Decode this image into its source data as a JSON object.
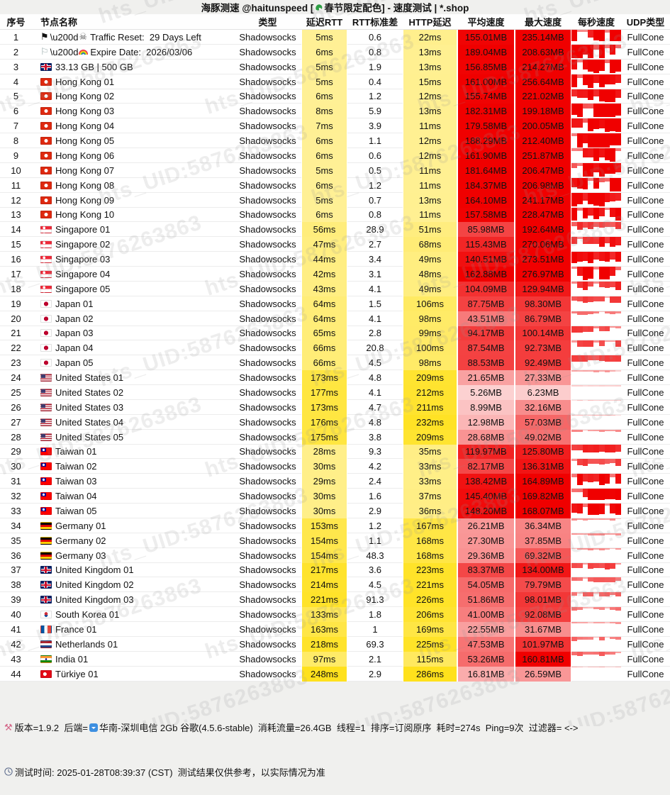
{
  "title": {
    "pre": "海豚测速 @haitunspeed [",
    "post": "春节限定配色] - 速度测试 | *.shop"
  },
  "watermark": {
    "text": "hts_UID:5876263863"
  },
  "table": {
    "headers": [
      "序号",
      "节点名称",
      "类型",
      "延迟RTT",
      "RTT标准差",
      "HTTP延迟",
      "平均速度",
      "最大速度",
      "每秒速度",
      "UDP类型"
    ],
    "rows": [
      {
        "num": "1",
        "flag": "pirate",
        "name": "Traffic Reset:  29 Days Left",
        "type": "Shadowsocks",
        "rtt": "5ms",
        "std": "0.6",
        "http": "22ms",
        "avg": "155.01MB",
        "max": "235.14MB",
        "udp": "FullCone"
      },
      {
        "num": "2",
        "flag": "rainbow",
        "name": "Expire Date:  2026/03/06",
        "type": "Shadowsocks",
        "rtt": "6ms",
        "std": "0.8",
        "http": "13ms",
        "avg": "189.04MB",
        "max": "208.63MB",
        "udp": "FullCone"
      },
      {
        "num": "3",
        "flag": "gb",
        "name": "33.13 GB | 500 GB",
        "type": "Shadowsocks",
        "rtt": "5ms",
        "std": "1.9",
        "http": "13ms",
        "avg": "156.85MB",
        "max": "214.27MB",
        "udp": "FullCone"
      },
      {
        "num": "4",
        "flag": "hk",
        "name": "Hong Kong 01",
        "type": "Shadowsocks",
        "rtt": "5ms",
        "std": "0.4",
        "http": "15ms",
        "avg": "161.00MB",
        "max": "256.64MB",
        "udp": "FullCone"
      },
      {
        "num": "5",
        "flag": "hk",
        "name": "Hong Kong 02",
        "type": "Shadowsocks",
        "rtt": "6ms",
        "std": "1.2",
        "http": "12ms",
        "avg": "155.74MB",
        "max": "221.02MB",
        "udp": "FullCone"
      },
      {
        "num": "6",
        "flag": "hk",
        "name": "Hong Kong 03",
        "type": "Shadowsocks",
        "rtt": "8ms",
        "std": "5.9",
        "http": "13ms",
        "avg": "182.31MB",
        "max": "199.18MB",
        "udp": "FullCone"
      },
      {
        "num": "7",
        "flag": "hk",
        "name": "Hong Kong 04",
        "type": "Shadowsocks",
        "rtt": "7ms",
        "std": "3.9",
        "http": "11ms",
        "avg": "179.58MB",
        "max": "200.05MB",
        "udp": "FullCone"
      },
      {
        "num": "8",
        "flag": "hk",
        "name": "Hong Kong 05",
        "type": "Shadowsocks",
        "rtt": "6ms",
        "std": "1.1",
        "http": "12ms",
        "avg": "188.29MB",
        "max": "212.40MB",
        "udp": "FullCone"
      },
      {
        "num": "9",
        "flag": "hk",
        "name": "Hong Kong 06",
        "type": "Shadowsocks",
        "rtt": "6ms",
        "std": "0.6",
        "http": "12ms",
        "avg": "161.90MB",
        "max": "251.87MB",
        "udp": "FullCone"
      },
      {
        "num": "10",
        "flag": "hk",
        "name": "Hong Kong 07",
        "type": "Shadowsocks",
        "rtt": "5ms",
        "std": "0.5",
        "http": "11ms",
        "avg": "181.64MB",
        "max": "206.47MB",
        "udp": "FullCone"
      },
      {
        "num": "11",
        "flag": "hk",
        "name": "Hong Kong 08",
        "type": "Shadowsocks",
        "rtt": "6ms",
        "std": "1.2",
        "http": "11ms",
        "avg": "184.37MB",
        "max": "206.98MB",
        "udp": "FullCone"
      },
      {
        "num": "12",
        "flag": "hk",
        "name": "Hong Kong 09",
        "type": "Shadowsocks",
        "rtt": "5ms",
        "std": "0.7",
        "http": "13ms",
        "avg": "164.10MB",
        "max": "241.17MB",
        "udp": "FullCone"
      },
      {
        "num": "13",
        "flag": "hk",
        "name": "Hong Kong 10",
        "type": "Shadowsocks",
        "rtt": "6ms",
        "std": "0.8",
        "http": "11ms",
        "avg": "157.58MB",
        "max": "228.47MB",
        "udp": "FullCone"
      },
      {
        "num": "14",
        "flag": "sg",
        "name": "Singapore 01",
        "type": "Shadowsocks",
        "rtt": "56ms",
        "std": "28.9",
        "http": "51ms",
        "avg": "85.98MB",
        "max": "192.64MB",
        "udp": "FullCone"
      },
      {
        "num": "15",
        "flag": "sg",
        "name": "Singapore 02",
        "type": "Shadowsocks",
        "rtt": "47ms",
        "std": "2.7",
        "http": "68ms",
        "avg": "115.43MB",
        "max": "270.06MB",
        "udp": "FullCone"
      },
      {
        "num": "16",
        "flag": "sg",
        "name": "Singapore 03",
        "type": "Shadowsocks",
        "rtt": "44ms",
        "std": "3.4",
        "http": "49ms",
        "avg": "140.51MB",
        "max": "273.51MB",
        "udp": "FullCone"
      },
      {
        "num": "17",
        "flag": "sg",
        "name": "Singapore 04",
        "type": "Shadowsocks",
        "rtt": "42ms",
        "std": "3.1",
        "http": "48ms",
        "avg": "162.88MB",
        "max": "276.97MB",
        "udp": "FullCone"
      },
      {
        "num": "18",
        "flag": "sg",
        "name": "Singapore 05",
        "type": "Shadowsocks",
        "rtt": "43ms",
        "std": "4.1",
        "http": "49ms",
        "avg": "104.09MB",
        "max": "129.94MB",
        "udp": "FullCone"
      },
      {
        "num": "19",
        "flag": "jp",
        "name": "Japan 01",
        "type": "Shadowsocks",
        "rtt": "64ms",
        "std": "1.5",
        "http": "106ms",
        "avg": "87.75MB",
        "max": "98.30MB",
        "udp": "FullCone"
      },
      {
        "num": "20",
        "flag": "jp",
        "name": "Japan 02",
        "type": "Shadowsocks",
        "rtt": "64ms",
        "std": "4.1",
        "http": "98ms",
        "avg": "43.51MB",
        "max": "86.79MB",
        "udp": "FullCone"
      },
      {
        "num": "21",
        "flag": "jp",
        "name": "Japan 03",
        "type": "Shadowsocks",
        "rtt": "65ms",
        "std": "2.8",
        "http": "99ms",
        "avg": "94.17MB",
        "max": "100.14MB",
        "udp": "FullCone"
      },
      {
        "num": "22",
        "flag": "jp",
        "name": "Japan 04",
        "type": "Shadowsocks",
        "rtt": "66ms",
        "std": "20.8",
        "http": "100ms",
        "avg": "87.54MB",
        "max": "92.73MB",
        "udp": "FullCone"
      },
      {
        "num": "23",
        "flag": "jp",
        "name": "Japan 05",
        "type": "Shadowsocks",
        "rtt": "66ms",
        "std": "4.5",
        "http": "98ms",
        "avg": "88.53MB",
        "max": "92.49MB",
        "udp": "FullCone"
      },
      {
        "num": "24",
        "flag": "us",
        "name": "United States 01",
        "type": "Shadowsocks",
        "rtt": "173ms",
        "std": "4.8",
        "http": "209ms",
        "avg": "21.65MB",
        "max": "27.33MB",
        "udp": "FullCone"
      },
      {
        "num": "25",
        "flag": "us",
        "name": "United States 02",
        "type": "Shadowsocks",
        "rtt": "177ms",
        "std": "4.1",
        "http": "212ms",
        "avg": "5.26MB",
        "max": "6.23MB",
        "udp": "FullCone"
      },
      {
        "num": "26",
        "flag": "us",
        "name": "United States 03",
        "type": "Shadowsocks",
        "rtt": "173ms",
        "std": "4.7",
        "http": "211ms",
        "avg": "8.99MB",
        "max": "32.16MB",
        "udp": "FullCone"
      },
      {
        "num": "27",
        "flag": "us",
        "name": "United States 04",
        "type": "Shadowsocks",
        "rtt": "176ms",
        "std": "4.8",
        "http": "232ms",
        "avg": "12.98MB",
        "max": "57.03MB",
        "udp": "FullCone"
      },
      {
        "num": "28",
        "flag": "us",
        "name": "United States 05",
        "type": "Shadowsocks",
        "rtt": "175ms",
        "std": "3.8",
        "http": "209ms",
        "avg": "28.68MB",
        "max": "49.02MB",
        "udp": "FullCone"
      },
      {
        "num": "29",
        "flag": "tw",
        "name": "Taiwan 01",
        "type": "Shadowsocks",
        "rtt": "28ms",
        "std": "9.3",
        "http": "35ms",
        "avg": "119.97MB",
        "max": "125.80MB",
        "udp": "FullCone"
      },
      {
        "num": "30",
        "flag": "tw",
        "name": "Taiwan 02",
        "type": "Shadowsocks",
        "rtt": "30ms",
        "std": "4.2",
        "http": "33ms",
        "avg": "82.17MB",
        "max": "136.31MB",
        "udp": "FullCone"
      },
      {
        "num": "31",
        "flag": "tw",
        "name": "Taiwan 03",
        "type": "Shadowsocks",
        "rtt": "29ms",
        "std": "2.4",
        "http": "33ms",
        "avg": "138.42MB",
        "max": "164.89MB",
        "udp": "FullCone"
      },
      {
        "num": "32",
        "flag": "tw",
        "name": "Taiwan 04",
        "type": "Shadowsocks",
        "rtt": "30ms",
        "std": "1.6",
        "http": "37ms",
        "avg": "145.40MB",
        "max": "169.82MB",
        "udp": "FullCone"
      },
      {
        "num": "33",
        "flag": "tw",
        "name": "Taiwan 05",
        "type": "Shadowsocks",
        "rtt": "30ms",
        "std": "2.9",
        "http": "36ms",
        "avg": "148.20MB",
        "max": "168.07MB",
        "udp": "FullCone"
      },
      {
        "num": "34",
        "flag": "de",
        "name": "Germany 01",
        "type": "Shadowsocks",
        "rtt": "153ms",
        "std": "1.2",
        "http": "167ms",
        "avg": "26.21MB",
        "max": "36.34MB",
        "udp": "FullCone"
      },
      {
        "num": "35",
        "flag": "de",
        "name": "Germany 02",
        "type": "Shadowsocks",
        "rtt": "154ms",
        "std": "1.1",
        "http": "168ms",
        "avg": "27.30MB",
        "max": "37.85MB",
        "udp": "FullCone"
      },
      {
        "num": "36",
        "flag": "de",
        "name": "Germany 03",
        "type": "Shadowsocks",
        "rtt": "154ms",
        "std": "48.3",
        "http": "168ms",
        "avg": "29.36MB",
        "max": "69.32MB",
        "udp": "FullCone"
      },
      {
        "num": "37",
        "flag": "gb",
        "name": "United Kingdom 01",
        "type": "Shadowsocks",
        "rtt": "217ms",
        "std": "3.6",
        "http": "223ms",
        "avg": "83.37MB",
        "max": "134.00MB",
        "udp": "FullCone"
      },
      {
        "num": "38",
        "flag": "gb",
        "name": "United Kingdom 02",
        "type": "Shadowsocks",
        "rtt": "214ms",
        "std": "4.5",
        "http": "221ms",
        "avg": "54.05MB",
        "max": "79.79MB",
        "udp": "FullCone"
      },
      {
        "num": "39",
        "flag": "gb",
        "name": "United Kingdom 03",
        "type": "Shadowsocks",
        "rtt": "221ms",
        "std": "91.3",
        "http": "226ms",
        "avg": "51.86MB",
        "max": "98.01MB",
        "udp": "FullCone"
      },
      {
        "num": "40",
        "flag": "kr",
        "name": "South Korea 01",
        "type": "Shadowsocks",
        "rtt": "133ms",
        "std": "1.8",
        "http": "206ms",
        "avg": "41.00MB",
        "max": "92.08MB",
        "udp": "FullCone"
      },
      {
        "num": "41",
        "flag": "fr",
        "name": "France 01",
        "type": "Shadowsocks",
        "rtt": "163ms",
        "std": "1",
        "http": "169ms",
        "avg": "22.55MB",
        "max": "31.67MB",
        "udp": "FullCone"
      },
      {
        "num": "42",
        "flag": "nl",
        "name": "Netherlands 01",
        "type": "Shadowsocks",
        "rtt": "218ms",
        "std": "69.3",
        "http": "225ms",
        "avg": "47.53MB",
        "max": "101.97MB",
        "udp": "FullCone"
      },
      {
        "num": "43",
        "flag": "in",
        "name": "India 01",
        "type": "Shadowsocks",
        "rtt": "97ms",
        "std": "2.1",
        "http": "115ms",
        "avg": "53.26MB",
        "max": "160.81MB",
        "udp": "FullCone"
      },
      {
        "num": "44",
        "flag": "tr",
        "name": "Türkiye 01",
        "type": "Shadowsocks",
        "rtt": "248ms",
        "std": "2.9",
        "http": "286ms",
        "avg": "16.81MB",
        "max": "26.59MB",
        "udp": "FullCone"
      }
    ]
  },
  "special_flags": {
    "zwj_literal": "\\u200d",
    "pirate_skull": "☠",
    "black_flag": "⚑",
    "white_flag": "⚐"
  },
  "footer": {
    "line1_pre": "版本=1.9.2  后端=",
    "line1_post": "华南-深圳电信 2Gb 谷歌(4.5.6-stable)  消耗流量=26.4GB  线程=1  排序=订阅原序  耗时=274s  Ping=9次  过滤器= <->",
    "line2": "测试时间: 2025-01-28T08:39:37 (CST)  测试结果仅供参考，以实际情况为准"
  }
}
